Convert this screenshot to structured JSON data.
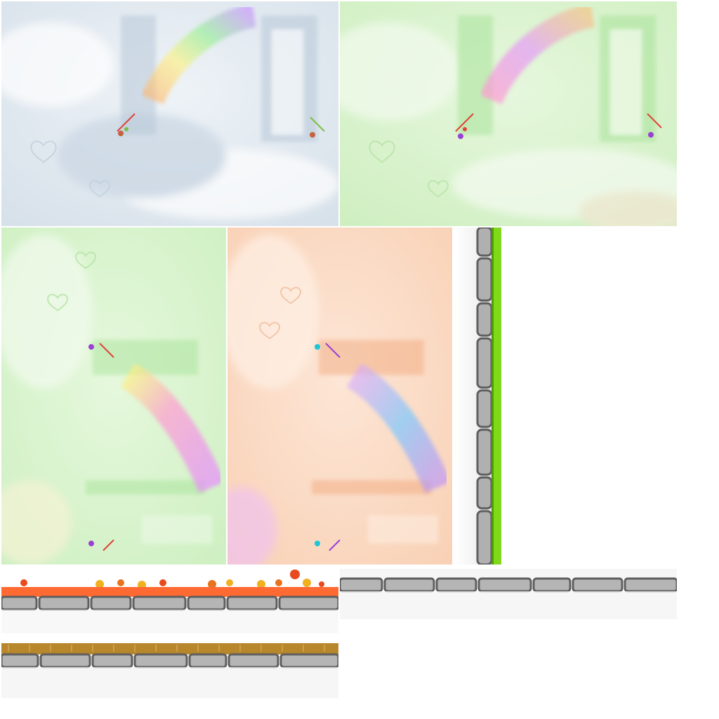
{
  "sheet": {
    "type": "game-texture-atlas",
    "background": "#ffffff"
  },
  "tiles": [
    {
      "name": "bg-blue-landscape",
      "palette": {
        "base": "#dfe7ef",
        "mist": "#c6d4e2",
        "rainbow": true,
        "window": true
      }
    },
    {
      "name": "bg-green-landscape",
      "palette": {
        "base": "#d9f2cf",
        "mist": "#bfeab0",
        "rainbow": true,
        "window": true
      }
    },
    {
      "name": "bg-green-portrait",
      "palette": {
        "base": "#d6f3cb",
        "mist": "#b9ecac",
        "rainbow": true,
        "window": true
      }
    },
    {
      "name": "bg-peach-portrait",
      "palette": {
        "base": "#fbd9c2",
        "mist": "#f5c3a4",
        "rainbow": true,
        "window": true
      }
    },
    {
      "name": "wall-vertical-grass",
      "palette": {
        "stone": "#9a9a9a",
        "grout": "#5f5f5f",
        "grass": "#7fd81a"
      }
    },
    {
      "name": "strip-autumn-leaves",
      "palette": {
        "stone": "#a3a3a3",
        "top": "#ff6a33",
        "leaves": "#f0a020"
      }
    },
    {
      "name": "strip-plain-stone",
      "palette": {
        "stone": "#a3a3a3",
        "top": "#f6f6f6"
      }
    },
    {
      "name": "strip-straw-grass",
      "palette": {
        "stone": "#a3a3a3",
        "top": "#b8862b"
      }
    }
  ],
  "colors": {
    "rainbow": [
      "#ff7ab0",
      "#ffb36b",
      "#fff27a",
      "#8ef08e",
      "#7ac8ff",
      "#c58cff"
    ],
    "outline": "#6e6e6e"
  }
}
